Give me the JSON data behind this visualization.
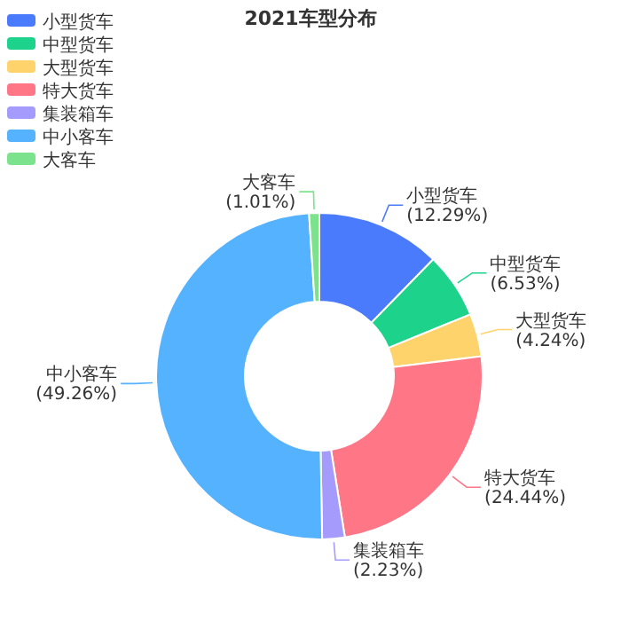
{
  "chart_data": {
    "type": "donut",
    "title": "2021车型分布",
    "categories": [
      "小型货车",
      "中型货车",
      "大型货车",
      "特大货车",
      "集装箱车",
      "中小客车",
      "大客车"
    ],
    "values": [
      12.29,
      6.53,
      4.24,
      24.44,
      2.23,
      49.26,
      1.01
    ],
    "value_labels": [
      "(12.29%)",
      "(6.53%)",
      "(4.24%)",
      "(24.44%)",
      "(2.23%)",
      "(49.26%)",
      "(1.01%)"
    ],
    "colors": [
      "#4b7bfd",
      "#1dd38c",
      "#ffd36b",
      "#ff7686",
      "#a59bfd",
      "#55b2ff",
      "#7ce38c"
    ],
    "legend": "top left"
  }
}
